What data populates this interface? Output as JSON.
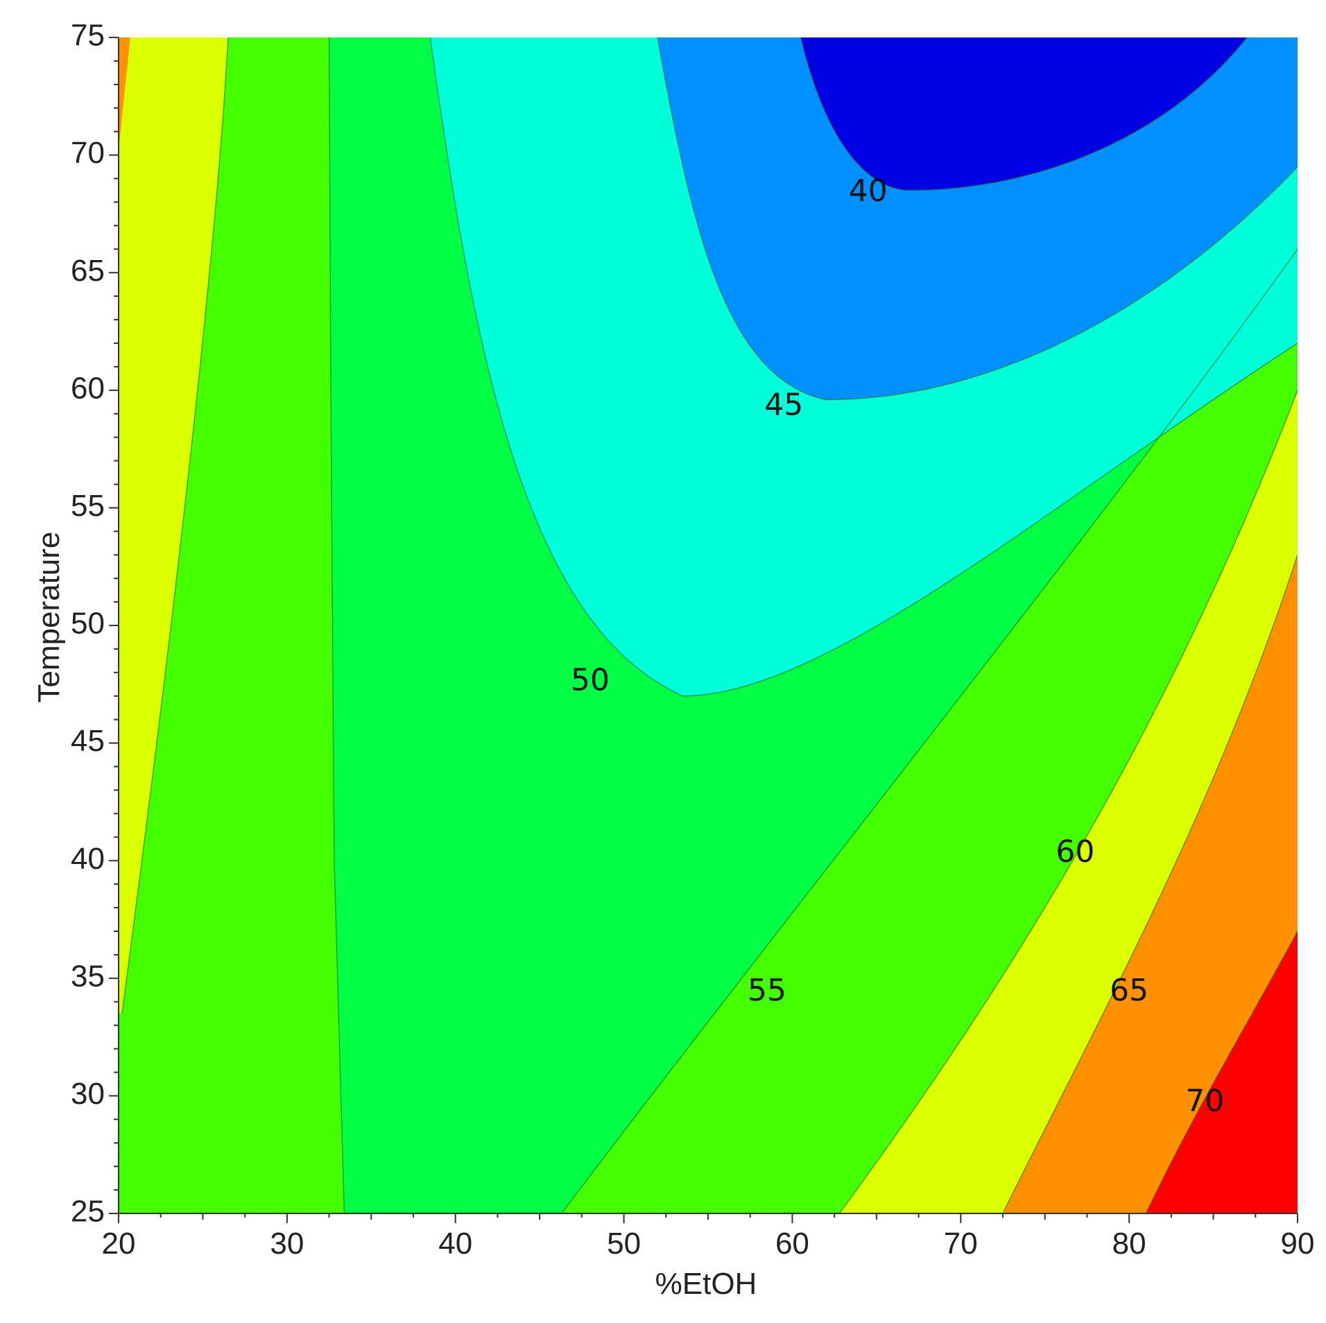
{
  "chart_data": {
    "type": "contour",
    "xlabel": "%EtOH",
    "ylabel": "Temperature",
    "xlim": [
      20,
      90
    ],
    "ylim": [
      25,
      75
    ],
    "x_ticks": [
      20,
      30,
      40,
      50,
      60,
      70,
      80,
      90
    ],
    "y_ticks": [
      25,
      30,
      35,
      40,
      45,
      50,
      55,
      60,
      65,
      70,
      75
    ],
    "x_tick_labels": [
      "20",
      "30",
      "40",
      "50",
      "60",
      "70",
      "80",
      "90"
    ],
    "y_tick_labels": [
      "25",
      "30",
      "35",
      "40",
      "45",
      "50",
      "55",
      "60",
      "65",
      "70",
      "75"
    ],
    "grid": false,
    "contour_levels": [
      35,
      40,
      45,
      50,
      55,
      60,
      65,
      70,
      75
    ],
    "level_colors": {
      "lt40": "#0000e0",
      "40-45": "#0090ff",
      "45-50": "#00ffd8",
      "50-55": "#00ff44",
      "55-60": "#44ff00",
      "60-65": "#daff00",
      "65-70": "#ff9000",
      "gt70": "#ff0000"
    },
    "contour_labels": [
      {
        "text": "40",
        "x": 64.5,
        "y": 68.4
      },
      {
        "text": "45",
        "x": 59.5,
        "y": 59.3
      },
      {
        "text": "50",
        "x": 48.0,
        "y": 47.6
      },
      {
        "text": "55",
        "x": 58.5,
        "y": 34.4
      },
      {
        "text": "60",
        "x": 76.8,
        "y": 40.3
      },
      {
        "text": "65",
        "x": 80.0,
        "y": 34.4
      },
      {
        "text": "70",
        "x": 84.5,
        "y": 29.7
      }
    ]
  }
}
